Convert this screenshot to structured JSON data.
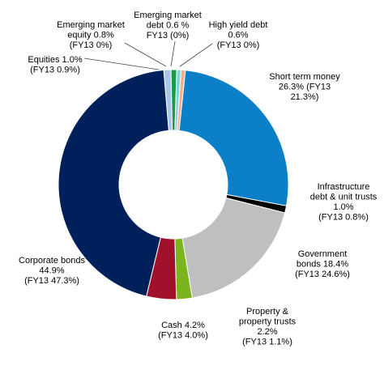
{
  "chart_data": {
    "type": "pie",
    "variant": "donut",
    "title": "",
    "legend": "none",
    "series": [
      {
        "name": "Short term money",
        "value": 26.3,
        "fy13": 21.3,
        "color": "#0b7fc7",
        "label_lines": [
          "Short term money",
          "26.3% (FY13",
          "21.3%)"
        ]
      },
      {
        "name": "Infrastructure debt & unit trusts",
        "value": 1.0,
        "fy13": 0.8,
        "color": "#000000",
        "label_lines": [
          "Infrastructure",
          "debt & unit trusts",
          "1.0%",
          "(FY13 0.8%)"
        ]
      },
      {
        "name": "Government bonds",
        "value": 18.4,
        "fy13": 24.6,
        "color": "#bfbfbf",
        "label_lines": [
          "Government",
          "bonds 18.4%",
          "(FY13 24.6%)"
        ]
      },
      {
        "name": "Property & property trusts",
        "value": 2.2,
        "fy13": 1.1,
        "color": "#7ab51d",
        "label_lines": [
          "Property &",
          "property trusts",
          "2.2%",
          "(FY13 1.1%)"
        ]
      },
      {
        "name": "Cash",
        "value": 4.2,
        "fy13": 4.0,
        "color": "#a1112b",
        "label_lines": [
          "Cash 4.2%",
          "(FY13 4.0%)"
        ]
      },
      {
        "name": "Corporate bonds",
        "value": 44.9,
        "fy13": 47.3,
        "color": "#00205b",
        "label_lines": [
          "Corporate bonds",
          "44.9%",
          "(FY13 47.3%)"
        ]
      },
      {
        "name": "Equities",
        "value": 1.0,
        "fy13": 0.9,
        "color": "#a9c6ea",
        "label_lines": [
          "Equities 1.0%",
          "(FY13 0.9%)"
        ]
      },
      {
        "name": "Emerging market equity",
        "value": 0.8,
        "fy13": 0,
        "color": "#1a9a47",
        "label_lines": [
          "Emerging market",
          "equity 0.8%",
          "(FY13 0%)"
        ]
      },
      {
        "name": "Emerging market debt",
        "value": 0.6,
        "fy13": 0,
        "color": "#7fd3e0",
        "label_lines": [
          "Emerging market",
          "debt 0.6 %",
          "FY13 (0%)"
        ]
      },
      {
        "name": "High yield debt",
        "value": 0.6,
        "fy13": 0,
        "color": "#f5b08a",
        "label_lines": [
          "High yield debt",
          "0.6%",
          "(FY13 0%)"
        ]
      }
    ]
  }
}
